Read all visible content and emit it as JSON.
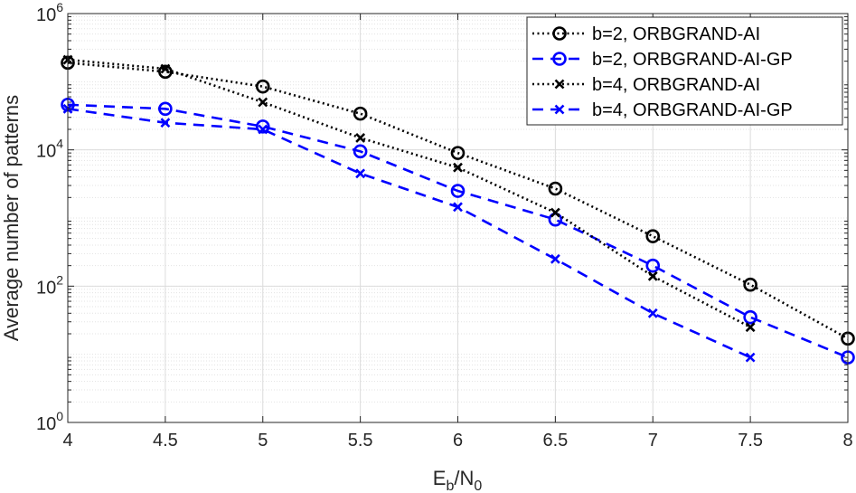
{
  "chart_data": {
    "type": "line",
    "title": "",
    "xlabel": {
      "main": "E",
      "sub1": "b",
      "mid": "/N",
      "sub2": "0"
    },
    "ylabel": "Average number of patterns",
    "xlim": [
      4,
      8
    ],
    "ylim": [
      1,
      1000000
    ],
    "yscale": "log",
    "grid": true,
    "legend_position": "top-right",
    "x_ticks": [
      4,
      4.5,
      5,
      5.5,
      6,
      6.5,
      7,
      7.5,
      8
    ],
    "x_tick_labels": [
      "4",
      "4.5",
      "5",
      "5.5",
      "6",
      "6.5",
      "7",
      "7.5",
      "8"
    ],
    "y_ticks": [
      {
        "value": 1,
        "base": "10",
        "exp": "0"
      },
      {
        "value": 100,
        "base": "10",
        "exp": "2"
      },
      {
        "value": 10000,
        "base": "10",
        "exp": "4"
      },
      {
        "value": 1000000,
        "base": "10",
        "exp": "6"
      }
    ],
    "series": [
      {
        "name": "b=2, ORBGRAND-AI",
        "color": "#000000",
        "line": "dotted",
        "marker": "circle",
        "x": [
          4,
          4.5,
          5,
          5.5,
          6,
          6.5,
          7,
          7.5,
          8
        ],
        "values": [
          190000,
          140000,
          85000,
          34000,
          9000,
          2700,
          540,
          105,
          17
        ]
      },
      {
        "name": "b=2, ORBGRAND-AI-GP",
        "color": "#0000ff",
        "line": "dashed",
        "marker": "circle",
        "x": [
          4,
          4.5,
          5,
          5.5,
          6,
          6.5,
          7,
          7.5,
          8
        ],
        "values": [
          46000,
          40000,
          22000,
          9500,
          2500,
          950,
          200,
          35,
          9
        ]
      },
      {
        "name": "b=4, ORBGRAND-AI",
        "color": "#000000",
        "line": "dotted",
        "marker": "x",
        "x": [
          4,
          4.5,
          5,
          5.5,
          6,
          6.5,
          7,
          7.5
        ],
        "values": [
          210000,
          155000,
          50000,
          15000,
          5500,
          1200,
          140,
          25
        ]
      },
      {
        "name": "b=4, ORBGRAND-AI-GP",
        "color": "#0000ff",
        "line": "dashed",
        "marker": "x",
        "x": [
          4,
          4.5,
          5,
          5.5,
          6,
          6.5,
          7,
          7.5
        ],
        "values": [
          40000,
          25000,
          20000,
          4500,
          1450,
          250,
          40,
          9
        ]
      }
    ]
  }
}
